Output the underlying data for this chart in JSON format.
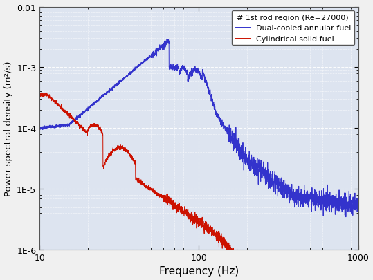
{
  "xlabel": "Frequency (Hz)",
  "ylabel": "Power spectral density (m²/s)",
  "xlim": [
    10,
    1000
  ],
  "ylim": [
    1e-06,
    0.01
  ],
  "legend_title": "# 1st rod region (Re=27000)",
  "legend_labels": [
    "Dual-cooled annular fuel",
    "Cylindrical solid fuel"
  ],
  "blue_color": "#3333cc",
  "red_color": "#cc1100",
  "background_color": "#dde4f0",
  "grid_color": "#ffffff",
  "grid_minor_color": "#e8eef8"
}
